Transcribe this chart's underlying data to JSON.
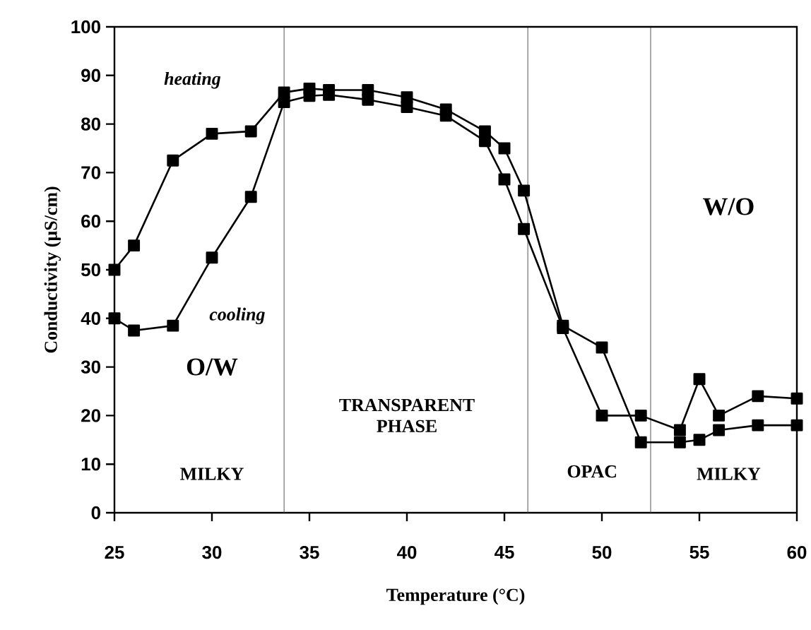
{
  "chart_data": {
    "type": "line",
    "xlabel": "Temperature (°C)",
    "ylabel": "Conductivity (µS/cm)",
    "xlim": [
      25,
      60
    ],
    "xticks": [
      25,
      30,
      35,
      40,
      45,
      50,
      55,
      60
    ],
    "ylim": [
      0,
      100
    ],
    "yticks": [
      0,
      10,
      20,
      30,
      40,
      50,
      60,
      70,
      80,
      90,
      100
    ],
    "marker": "square",
    "line_style": "solid",
    "series": [
      {
        "name": "heating",
        "color": "#000000",
        "x": [
          25,
          26,
          28,
          30,
          32,
          33.7,
          35,
          36,
          38,
          40,
          42,
          44,
          45,
          46,
          48,
          50,
          52,
          54,
          55,
          56,
          58,
          60
        ],
        "values": [
          50,
          55,
          72.5,
          78,
          78.5,
          86.5,
          87.3,
          87,
          87,
          85.5,
          83,
          78.5,
          75,
          66.3,
          38.5,
          34,
          14.5,
          14.5,
          15,
          17,
          18,
          18
        ]
      },
      {
        "name": "cooling",
        "color": "#000000",
        "x": [
          25,
          26,
          28,
          30,
          32,
          33.7,
          35,
          36,
          38,
          40,
          42,
          44,
          45,
          46,
          48,
          50,
          52,
          54,
          55,
          56,
          58,
          60
        ],
        "values": [
          40,
          37.5,
          38.5,
          52.5,
          65,
          84.5,
          85.8,
          86,
          85,
          83.5,
          81.7,
          76.5,
          68.6,
          58.4,
          38,
          20,
          20,
          17,
          27.5,
          20,
          24,
          23.5
        ]
      }
    ],
    "ref_lines": [
      {
        "axis": "x",
        "value": 33.7,
        "color": "#555555"
      },
      {
        "axis": "x",
        "value": 46.2,
        "color": "#555555"
      },
      {
        "axis": "x",
        "value": 52.5,
        "color": "#555555"
      }
    ],
    "annotations": [
      "O/W",
      "MILKY",
      "TRANSPARENT PHASE",
      "OPAC",
      "MILKY",
      "W/O"
    ]
  }
}
